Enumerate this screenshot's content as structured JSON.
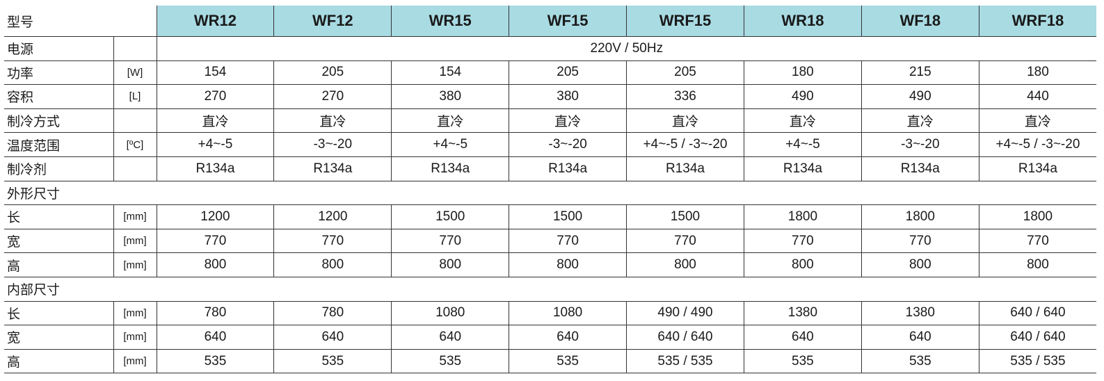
{
  "header": {
    "label": "型号",
    "models": [
      "WR12",
      "WF12",
      "WR15",
      "WF15",
      "WRF15",
      "WR18",
      "WF18",
      "WRF18"
    ],
    "header_color": "#a9dbe3"
  },
  "power_supply": {
    "label": "电源",
    "value": "220V / 50Hz"
  },
  "rows1": [
    {
      "label": "功率",
      "unit": "[W]",
      "values": [
        "154",
        "205",
        "154",
        "205",
        "205",
        "180",
        "215",
        "180"
      ]
    },
    {
      "label": "容积",
      "unit": "[L]",
      "values": [
        "270",
        "270",
        "380",
        "380",
        "336",
        "490",
        "490",
        "440"
      ]
    },
    {
      "label": "制冷方式",
      "unit": "",
      "values": [
        "直冷",
        "直冷",
        "直冷",
        "直冷",
        "直冷",
        "直冷",
        "直冷",
        "直冷"
      ]
    },
    {
      "label": "温度范围",
      "unit": "[ºC]",
      "values": [
        "+4~-5",
        "-3~-20",
        "+4~-5",
        "-3~-20",
        "+4~-5 / -3~-20",
        "+4~-5",
        "-3~-20",
        "+4~-5 / -3~-20"
      ]
    },
    {
      "label": "制冷剂",
      "unit": "",
      "values": [
        "R134a",
        "R134a",
        "R134a",
        "R134a",
        "R134a",
        "R134a",
        "R134a",
        "R134a"
      ]
    }
  ],
  "external": {
    "label": "外形尺寸",
    "rows": [
      {
        "label": "长",
        "unit": "[mm]",
        "values": [
          "1200",
          "1200",
          "1500",
          "1500",
          "1500",
          "1800",
          "1800",
          "1800"
        ]
      },
      {
        "label": "宽",
        "unit": "[mm]",
        "values": [
          "770",
          "770",
          "770",
          "770",
          "770",
          "770",
          "770",
          "770"
        ]
      },
      {
        "label": "高",
        "unit": "[mm]",
        "values": [
          "800",
          "800",
          "800",
          "800",
          "800",
          "800",
          "800",
          "800"
        ]
      }
    ]
  },
  "internal": {
    "label": "内部尺寸",
    "rows": [
      {
        "label": "长",
        "unit": "[mm]",
        "values": [
          "780",
          "780",
          "1080",
          "1080",
          "490 / 490",
          "1380",
          "1380",
          "640 / 640"
        ]
      },
      {
        "label": "宽",
        "unit": "[mm]",
        "values": [
          "640",
          "640",
          "640",
          "640",
          "640 / 640",
          "640",
          "640",
          "640 / 640"
        ]
      },
      {
        "label": "高",
        "unit": "[mm]",
        "values": [
          "535",
          "535",
          "535",
          "535",
          "535 / 535",
          "535",
          "535",
          "535 / 535"
        ]
      }
    ]
  }
}
